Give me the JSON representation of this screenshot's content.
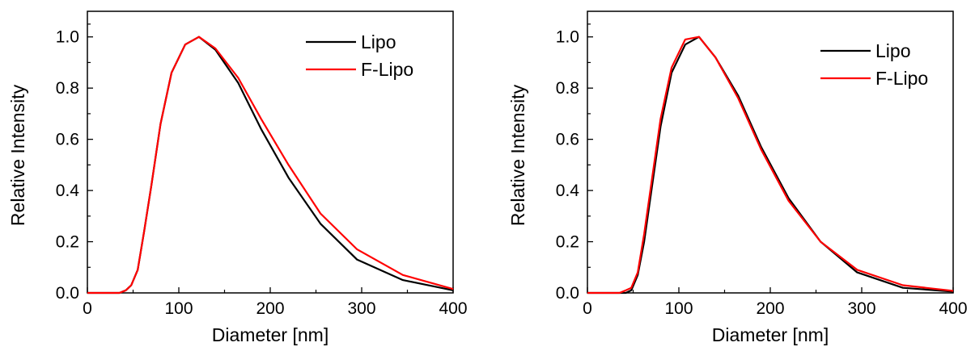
{
  "chart_data": [
    {
      "type": "line",
      "title": "",
      "xlabel": "Diameter [nm]",
      "ylabel": "Relative Intensity",
      "xlim": [
        0,
        400
      ],
      "ylim": [
        0,
        1.1
      ],
      "xticks": [
        "0",
        "100",
        "200",
        "300",
        "400"
      ],
      "yticks": [
        "0.0",
        "0.2",
        "0.4",
        "0.6",
        "0.8",
        "1.0"
      ],
      "grid": false,
      "legend_position": "top-right",
      "series": [
        {
          "name": "Lipo",
          "color": "#000000",
          "x": [
            0,
            35,
            42,
            48,
            55,
            62,
            70,
            80,
            92,
            107,
            122,
            140,
            165,
            190,
            220,
            255,
            295,
            345,
            400
          ],
          "y": [
            0,
            0,
            0.01,
            0.03,
            0.09,
            0.24,
            0.42,
            0.66,
            0.86,
            0.97,
            1.0,
            0.95,
            0.82,
            0.64,
            0.45,
            0.27,
            0.13,
            0.05,
            0.01
          ]
        },
        {
          "name": "F-Lipo",
          "color": "#ff0000",
          "x": [
            0,
            35,
            42,
            48,
            55,
            62,
            70,
            80,
            92,
            107,
            122,
            140,
            165,
            190,
            220,
            255,
            295,
            345,
            400
          ],
          "y": [
            0,
            0,
            0.01,
            0.03,
            0.09,
            0.24,
            0.42,
            0.66,
            0.86,
            0.97,
            1.0,
            0.955,
            0.84,
            0.68,
            0.5,
            0.31,
            0.17,
            0.07,
            0.015
          ]
        }
      ]
    },
    {
      "type": "line",
      "title": "",
      "xlabel": "Diameter [nm]",
      "ylabel": "Relative Intensity",
      "xlim": [
        0,
        400
      ],
      "ylim": [
        0,
        1.1
      ],
      "xticks": [
        "0",
        "100",
        "200",
        "300",
        "400"
      ],
      "yticks": [
        "0.0",
        "0.2",
        "0.4",
        "0.6",
        "0.8",
        "1.0"
      ],
      "grid": false,
      "legend_position": "top-right",
      "series": [
        {
          "name": "Lipo",
          "color": "#000000",
          "x": [
            0,
            35,
            42,
            48,
            55,
            62,
            70,
            80,
            92,
            107,
            122,
            140,
            165,
            190,
            220,
            255,
            295,
            345,
            400
          ],
          "y": [
            0,
            0,
            0.0,
            0.01,
            0.07,
            0.2,
            0.4,
            0.65,
            0.86,
            0.97,
            1.0,
            0.92,
            0.77,
            0.57,
            0.37,
            0.2,
            0.08,
            0.02,
            0.005
          ]
        },
        {
          "name": "F-Lipo",
          "color": "#ff0000",
          "x": [
            0,
            35,
            42,
            48,
            55,
            62,
            70,
            80,
            92,
            107,
            122,
            140,
            165,
            190,
            220,
            255,
            295,
            345,
            400
          ],
          "y": [
            0,
            0,
            0.01,
            0.02,
            0.08,
            0.23,
            0.43,
            0.68,
            0.88,
            0.99,
            1.0,
            0.92,
            0.76,
            0.56,
            0.36,
            0.2,
            0.09,
            0.03,
            0.008
          ]
        }
      ]
    }
  ]
}
